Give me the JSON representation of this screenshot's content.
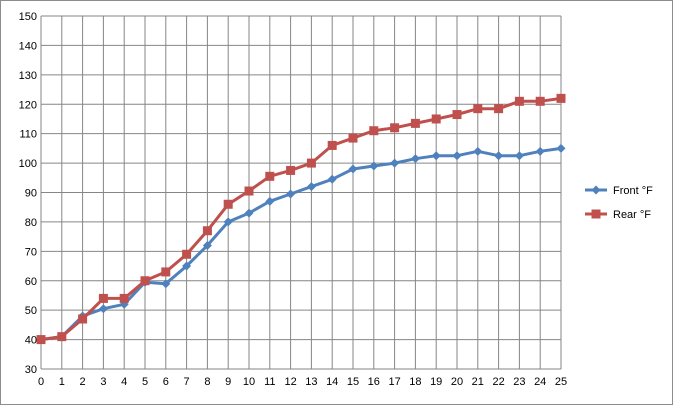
{
  "chart_data": {
    "type": "line",
    "x": [
      0,
      1,
      2,
      3,
      4,
      5,
      6,
      7,
      8,
      9,
      10,
      11,
      12,
      13,
      14,
      15,
      16,
      17,
      18,
      19,
      20,
      21,
      22,
      23,
      24,
      25
    ],
    "x_ticks": [
      "0",
      "1",
      "2",
      "3",
      "4",
      "5",
      "6",
      "7",
      "8",
      "9",
      "10",
      "11",
      "12",
      "13",
      "14",
      "15",
      "16",
      "17",
      "18",
      "19",
      "20",
      "21",
      "22",
      "23",
      "24",
      "25"
    ],
    "y_ticks": [
      "30",
      "40",
      "50",
      "60",
      "70",
      "80",
      "90",
      "100",
      "110",
      "120",
      "130",
      "140",
      "150"
    ],
    "xlim": [
      0,
      25
    ],
    "ylim": [
      30,
      150
    ],
    "grid": true,
    "legend_position": "right",
    "series": [
      {
        "name": "Front °F",
        "color": "#4F81BD",
        "marker": "diamond",
        "values": [
          40,
          41,
          48,
          50.5,
          52,
          59.5,
          59,
          65,
          72,
          80,
          83,
          87,
          89.5,
          92,
          94.5,
          98,
          99,
          100,
          101.5,
          102.5,
          102.5,
          104,
          102.5,
          102.5,
          104,
          105
        ]
      },
      {
        "name": "Rear °F",
        "color": "#C0504D",
        "marker": "square",
        "values": [
          40,
          41,
          47,
          54,
          54,
          60,
          63,
          69,
          77,
          86,
          90.5,
          95.5,
          97.5,
          100,
          106,
          108.5,
          111,
          112,
          113.5,
          115,
          116.5,
          118.5,
          118.5,
          121,
          121,
          122
        ]
      }
    ]
  }
}
